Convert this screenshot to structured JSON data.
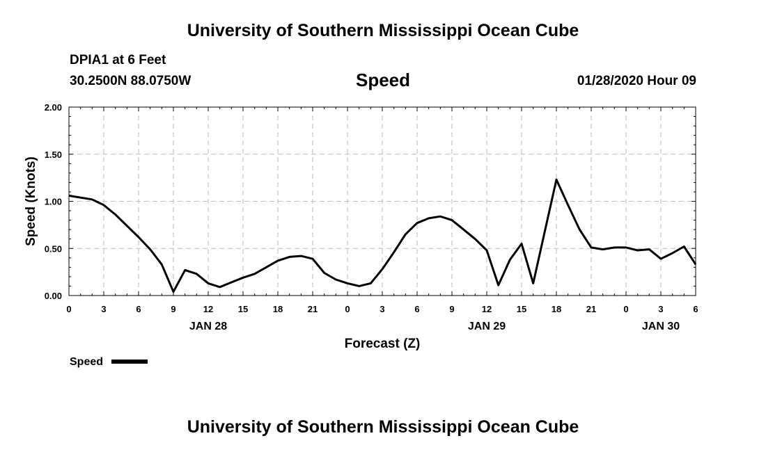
{
  "header": {
    "title": "University of Southern Mississippi Ocean Cube",
    "station": "DPIA1 at 6 Feet",
    "coordinates": "30.2500N 88.0750W",
    "chart_title": "Speed",
    "timestamp": "01/28/2020 Hour 09"
  },
  "footer": {
    "title": "University of Southern Mississippi Ocean Cube"
  },
  "colors": {
    "line": "#000000",
    "grid": "#bbbbbb"
  },
  "chart_data": {
    "type": "line",
    "title": "Speed",
    "xlabel": "Forecast (Z)",
    "ylabel": "Speed (Knots)",
    "xlim": [
      0,
      54
    ],
    "ylim": [
      0,
      2
    ],
    "x_ticks": [
      0,
      3,
      6,
      9,
      12,
      15,
      18,
      21,
      24,
      27,
      30,
      33,
      36,
      39,
      42,
      45,
      48,
      51,
      54
    ],
    "x_tick_labels": [
      "0",
      "3",
      "6",
      "9",
      "12",
      "15",
      "18",
      "21",
      "0",
      "3",
      "6",
      "9",
      "12",
      "15",
      "18",
      "21",
      "0",
      "3",
      "6"
    ],
    "y_ticks": [
      0,
      0.5,
      1,
      1.5,
      2
    ],
    "y_tick_labels": [
      "0.00",
      "0.50",
      "1.00",
      "1.50",
      "2.00"
    ],
    "date_labels": [
      {
        "x": 12,
        "label": "JAN 28"
      },
      {
        "x": 36,
        "label": "JAN 29"
      },
      {
        "x": 51,
        "label": "JAN 30"
      }
    ],
    "legend": "Speed",
    "series": [
      {
        "name": "Speed",
        "x": [
          0,
          1,
          2,
          3,
          4,
          5,
          6,
          7,
          8,
          9,
          10,
          11,
          12,
          13,
          14,
          15,
          16,
          17,
          18,
          19,
          20,
          21,
          22,
          23,
          24,
          25,
          26,
          27,
          28,
          29,
          30,
          31,
          32,
          33,
          34,
          35,
          36,
          37,
          38,
          39,
          40,
          41,
          42,
          43,
          44,
          45,
          46,
          47,
          48,
          49,
          50,
          51,
          52,
          53,
          54
        ],
        "values": [
          1.06,
          1.04,
          1.02,
          0.96,
          0.86,
          0.74,
          0.62,
          0.49,
          0.33,
          0.04,
          0.27,
          0.23,
          0.13,
          0.09,
          0.14,
          0.19,
          0.23,
          0.3,
          0.37,
          0.41,
          0.42,
          0.39,
          0.24,
          0.17,
          0.13,
          0.1,
          0.13,
          0.28,
          0.46,
          0.65,
          0.77,
          0.82,
          0.84,
          0.8,
          0.7,
          0.6,
          0.48,
          0.11,
          0.38,
          0.55,
          0.13,
          0.68,
          1.23,
          0.96,
          0.7,
          0.51,
          0.49,
          0.51,
          0.51,
          0.48,
          0.49,
          0.39,
          0.45,
          0.52,
          0.33
        ]
      }
    ]
  }
}
